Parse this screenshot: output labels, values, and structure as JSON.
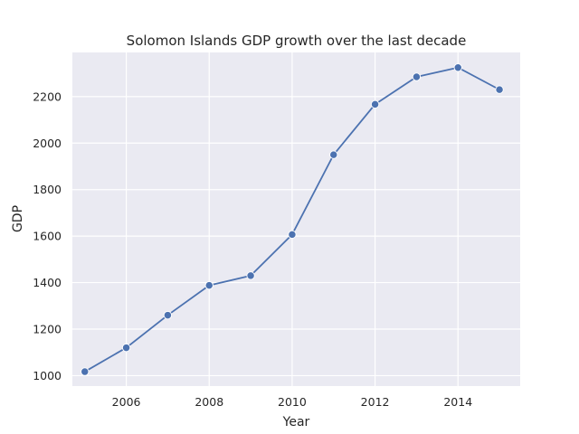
{
  "chart_data": {
    "type": "line",
    "title": "Solomon Islands GDP growth over the last decade",
    "xlabel": "Year",
    "ylabel": "GDP",
    "x": [
      2005,
      2006,
      2007,
      2008,
      2009,
      2010,
      2011,
      2012,
      2013,
      2014,
      2015
    ],
    "series": [
      {
        "values": [
          1017,
          1120,
          1260,
          1388,
          1430,
          1607,
          1950,
          2167,
          2285,
          2325,
          2230
        ],
        "color": "#4c72b0",
        "marker": "circle"
      }
    ],
    "xlim": [
      2004.7,
      2015.5
    ],
    "ylim": [
      955,
      2390
    ],
    "xticks": [
      2006,
      2008,
      2010,
      2012,
      2014
    ],
    "yticks": [
      1000,
      1200,
      1400,
      1600,
      1800,
      2000,
      2200
    ],
    "grid": true,
    "legend": "none",
    "colors": {
      "plot_background": "#eaeaf2",
      "grid": "#ffffff",
      "text": "#262626"
    }
  }
}
